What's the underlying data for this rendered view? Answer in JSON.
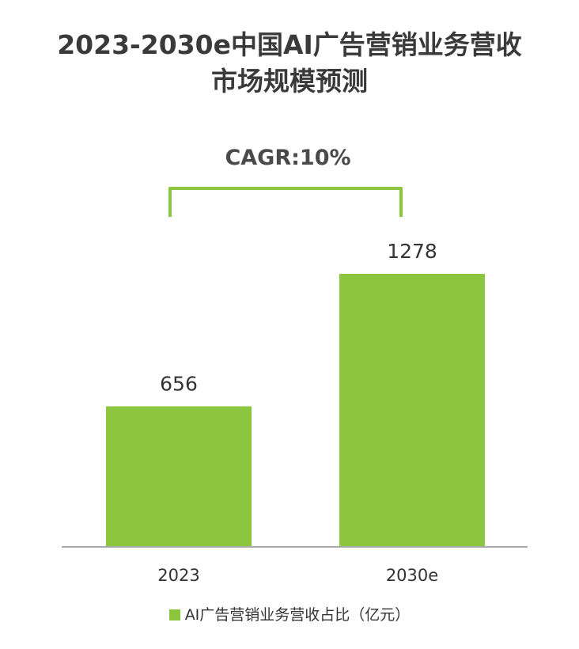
{
  "chart_data": {
    "type": "bar",
    "title": "2023-2030e中国AI广告营销业务营收\n市场规模预测",
    "categories": [
      "2023",
      "2030e"
    ],
    "series": [
      {
        "name": "AI广告营销业务营收占比（亿元）",
        "values": [
          656,
          1278
        ]
      }
    ],
    "ylim": [
      0,
      1500
    ],
    "grid": false,
    "legend_position": "bottom",
    "annotation": "CAGR:10%",
    "colors": {
      "bar": "#8cc63f",
      "bracket": "#8cc63f",
      "axis": "#aaaaaa"
    }
  }
}
